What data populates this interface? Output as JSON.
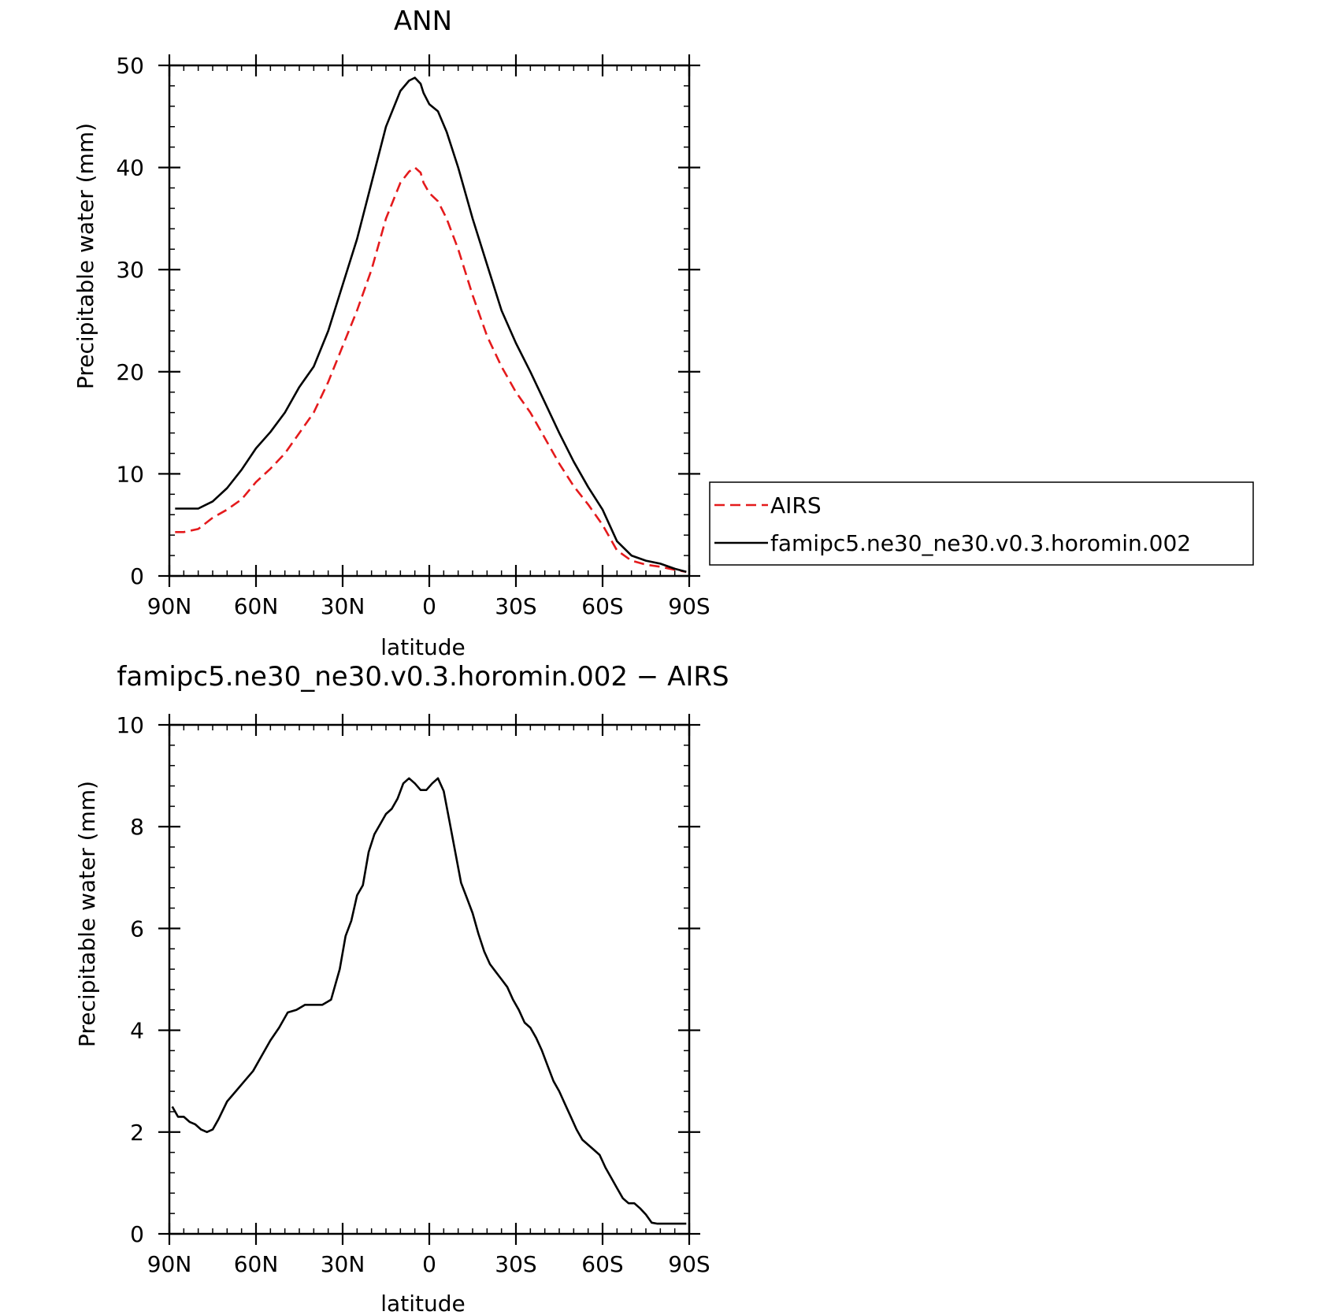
{
  "chart_data": [
    {
      "type": "line",
      "title": "ANN",
      "xlabel": "latitude",
      "ylabel": "Precipitable water (mm)",
      "xlim": [
        90,
        -90
      ],
      "ylim": [
        0,
        50
      ],
      "yticks": [
        "0",
        "10",
        "20",
        "30",
        "40",
        "50"
      ],
      "xticks": [
        "90N",
        "60N",
        "30N",
        "0",
        "30S",
        "60S",
        "90S"
      ],
      "legend": "right",
      "series": [
        {
          "name": "AIRS",
          "color": "#e41a1c",
          "dash": "dashed",
          "x": [
            88,
            85,
            80,
            75,
            70,
            65,
            60,
            55,
            50,
            45,
            40,
            35,
            30,
            25,
            20,
            15,
            10,
            7,
            5,
            3,
            2,
            0,
            -3,
            -6,
            -10,
            -15,
            -20,
            -25,
            -30,
            -35,
            -40,
            -45,
            -50,
            -55,
            -60,
            -65,
            -70,
            -75,
            -80,
            -85,
            -89
          ],
          "values": [
            4.3,
            4.3,
            4.6,
            5.7,
            6.5,
            7.5,
            9.2,
            10.5,
            12.0,
            14.0,
            16.0,
            19.0,
            22.5,
            26.0,
            30.0,
            35.0,
            38.5,
            39.6,
            40.0,
            39.5,
            38.5,
            37.5,
            36.7,
            35.0,
            32.0,
            27.5,
            23.5,
            20.5,
            18.0,
            16.0,
            13.5,
            11.0,
            8.8,
            7.0,
            5.0,
            2.5,
            1.5,
            1.1,
            0.9,
            0.6,
            0.4
          ]
        },
        {
          "name": "famipc5.ne30_ne30.v0.3.horomin.002",
          "color": "#000000",
          "dash": "solid",
          "x": [
            88,
            85,
            80,
            75,
            70,
            65,
            60,
            55,
            50,
            45,
            40,
            35,
            30,
            25,
            20,
            15,
            10,
            7,
            5,
            3,
            2,
            0,
            -3,
            -6,
            -10,
            -15,
            -20,
            -25,
            -30,
            -35,
            -40,
            -45,
            -50,
            -55,
            -60,
            -65,
            -70,
            -75,
            -80,
            -85,
            -89
          ],
          "values": [
            6.6,
            6.6,
            6.6,
            7.3,
            8.6,
            10.4,
            12.5,
            14.1,
            16.0,
            18.5,
            20.5,
            24.0,
            28.5,
            33.0,
            38.5,
            44.0,
            47.5,
            48.5,
            48.8,
            48.2,
            47.3,
            46.2,
            45.5,
            43.5,
            40.0,
            35.0,
            30.5,
            26.0,
            22.8,
            20.0,
            17.0,
            14.0,
            11.2,
            8.7,
            6.5,
            3.4,
            2.0,
            1.5,
            1.2,
            0.7,
            0.4
          ]
        }
      ]
    },
    {
      "type": "line",
      "title": "famipc5.ne30_ne30.v0.3.horomin.002 − AIRS",
      "xlabel": "latitude",
      "ylabel": "Precipitable water (mm)",
      "xlim": [
        90,
        -90
      ],
      "ylim": [
        0,
        10
      ],
      "yticks": [
        "0",
        "2",
        "4",
        "6",
        "8",
        "10"
      ],
      "xticks": [
        "90N",
        "60N",
        "30N",
        "0",
        "30S",
        "60S",
        "90S"
      ],
      "series": [
        {
          "color": "#000000",
          "dash": "solid",
          "x": [
            89,
            87,
            85,
            83,
            81,
            79,
            77,
            75,
            73,
            70,
            67,
            64,
            61,
            58,
            55,
            52,
            49,
            46,
            43,
            40,
            37,
            34,
            31,
            29,
            27,
            25,
            23,
            21,
            19,
            17,
            15,
            13,
            11,
            9,
            7,
            5,
            3,
            1,
            -1,
            -3,
            -5,
            -7,
            -9,
            -11,
            -13,
            -15,
            -17,
            -19,
            -21,
            -23,
            -25,
            -27,
            -29,
            -31,
            -33,
            -35,
            -37,
            -39,
            -41,
            -43,
            -45,
            -47,
            -49,
            -51,
            -53,
            -55,
            -57,
            -59,
            -61,
            -63,
            -65,
            -67,
            -69,
            -71,
            -73,
            -75,
            -77,
            -79,
            -81,
            -83,
            -85,
            -87,
            -89
          ],
          "values": [
            2.5,
            2.3,
            2.3,
            2.2,
            2.15,
            2.05,
            2.0,
            2.05,
            2.25,
            2.6,
            2.8,
            3.0,
            3.2,
            3.5,
            3.8,
            4.05,
            4.35,
            4.4,
            4.5,
            4.5,
            4.5,
            4.6,
            5.2,
            5.85,
            6.15,
            6.65,
            6.85,
            7.5,
            7.85,
            8.05,
            8.25,
            8.35,
            8.55,
            8.85,
            8.95,
            8.85,
            8.72,
            8.72,
            8.85,
            8.95,
            8.7,
            8.1,
            7.5,
            6.9,
            6.6,
            6.3,
            5.9,
            5.55,
            5.3,
            5.15,
            5.0,
            4.85,
            4.6,
            4.4,
            4.15,
            4.05,
            3.85,
            3.6,
            3.3,
            3.0,
            2.8,
            2.55,
            2.3,
            2.05,
            1.85,
            1.75,
            1.65,
            1.55,
            1.3,
            1.1,
            0.9,
            0.7,
            0.6,
            0.6,
            0.5,
            0.38,
            0.22,
            0.2,
            0.2,
            0.2,
            0.2,
            0.2,
            0.2
          ]
        }
      ]
    }
  ]
}
